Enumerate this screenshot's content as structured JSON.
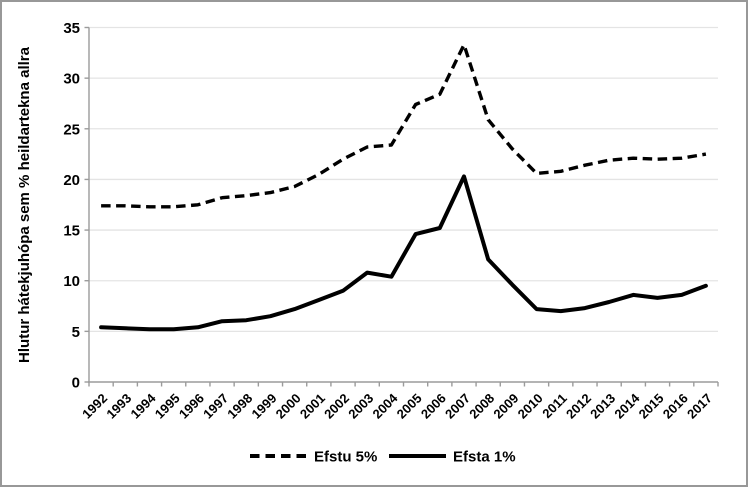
{
  "figure": {
    "background": "#ffffff",
    "border_color": "#989898",
    "gridline_color": "#e4e4e4",
    "axis_color": "#9b9b9b",
    "line_color": "#000000"
  },
  "chart_data": {
    "type": "line",
    "title": "",
    "xlabel": "",
    "ylabel": "Hlutur hátekjuhópa sem % heildartekna allra",
    "ylim": [
      0,
      35
    ],
    "yticks": [
      0,
      5,
      10,
      15,
      20,
      25,
      30,
      35
    ],
    "grid": true,
    "legend_position": "bottom",
    "categories": [
      "1992",
      "1993",
      "1994",
      "1995",
      "1996",
      "1997",
      "1998",
      "1999",
      "2000",
      "2001",
      "2002",
      "2003",
      "2004",
      "2005",
      "2006",
      "2007",
      "2008",
      "2009",
      "2010",
      "2011",
      "2012",
      "2013",
      "2014",
      "2015",
      "2016",
      "2017"
    ],
    "series": [
      {
        "name": "Efstu 5%",
        "style": "dashed",
        "color": "#000000",
        "values": [
          17.4,
          17.4,
          17.3,
          17.3,
          17.5,
          18.2,
          18.4,
          18.7,
          19.3,
          20.5,
          22.0,
          23.2,
          23.4,
          27.4,
          28.4,
          33.3,
          25.9,
          23.0,
          20.6,
          20.8,
          21.4,
          21.9,
          22.1,
          22.0,
          22.1,
          22.5
        ]
      },
      {
        "name": "Efsta 1%",
        "style": "solid",
        "color": "#000000",
        "values": [
          5.4,
          5.3,
          5.2,
          5.2,
          5.4,
          6.0,
          6.1,
          6.5,
          7.2,
          8.1,
          9.0,
          10.8,
          10.4,
          14.6,
          15.2,
          20.3,
          12.1,
          9.6,
          7.2,
          7.0,
          7.3,
          7.9,
          8.6,
          8.3,
          8.6,
          9.5
        ]
      }
    ]
  }
}
